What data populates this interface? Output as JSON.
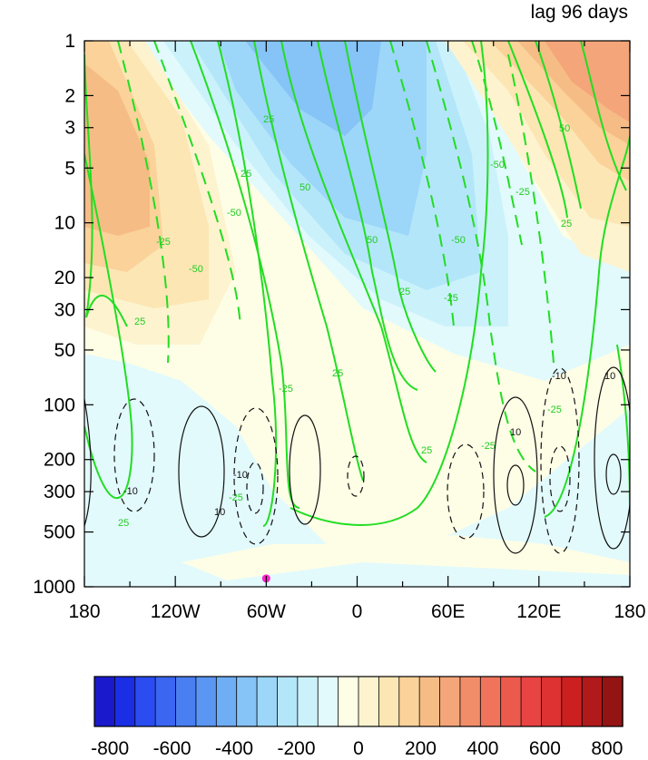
{
  "chart_data": {
    "type": "heatmap",
    "title": "lag 96 days",
    "x_ticks": [
      "180",
      "120W",
      "60W",
      "0",
      "60E",
      "120E",
      "180"
    ],
    "x_values": [
      -180,
      -120,
      -60,
      0,
      60,
      120,
      180
    ],
    "y_ticks": [
      "1",
      "2",
      "3",
      "5",
      "10",
      "20",
      "30",
      "50",
      "100",
      "200",
      "300",
      "500",
      "1000"
    ],
    "y_values": [
      1,
      2,
      3,
      5,
      10,
      20,
      30,
      50,
      100,
      200,
      300,
      500,
      1000
    ],
    "y_scale": "log",
    "y_reversed": true,
    "xlim": [
      -180,
      180
    ],
    "ylim": [
      1,
      1000
    ],
    "colorbar": {
      "ticks": [
        "-800",
        "-600",
        "-400",
        "-200",
        "0",
        "200",
        "400",
        "600",
        "800"
      ],
      "tick_values": [
        -800,
        -600,
        -400,
        -200,
        0,
        200,
        400,
        600,
        800
      ],
      "range": [
        -850,
        850
      ],
      "colors": [
        "#1a1acc",
        "#1a2ee6",
        "#2a4cf0",
        "#3a66f2",
        "#4a7ff2",
        "#5a96f2",
        "#6fadf4",
        "#86c3f6",
        "#9cd6f8",
        "#b4e6fa",
        "#cbf2fb",
        "#e2fafc",
        "#fefee6",
        "#fdf3cf",
        "#fce6b4",
        "#fad29a",
        "#f6bc86",
        "#f4a57a",
        "#f28d6a",
        "#f0735c",
        "#ec5a4e",
        "#e84444",
        "#de3232",
        "#cc2020",
        "#b01a1a",
        "#941414"
      ]
    },
    "contour_labels_green": [
      "25",
      "50",
      "-25",
      "-50"
    ],
    "contour_labels_black": [
      "10",
      "-10"
    ],
    "marker": {
      "lon": -60,
      "p": 900,
      "color": "#ff22cc"
    }
  }
}
